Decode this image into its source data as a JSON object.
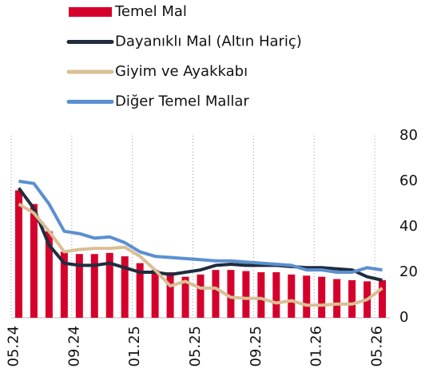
{
  "chart_data": {
    "type": "bar",
    "categories": [
      "05.24",
      null,
      null,
      null,
      "09.24",
      null,
      null,
      null,
      "01.25",
      null,
      null,
      null,
      "05.25",
      null,
      null,
      null,
      "09.25",
      null,
      null,
      null,
      "01.26",
      null,
      null,
      null,
      "05.26"
    ],
    "series": [
      {
        "name": "Temel Mal",
        "type": "bar",
        "color": "#d5002b",
        "values": [
          56,
          50,
          38,
          29,
          28,
          28,
          28.5,
          27,
          24,
          21,
          20,
          18,
          19,
          21,
          21,
          20.5,
          20,
          20,
          19,
          18.5,
          18,
          17,
          16.5,
          16,
          16.5
        ]
      },
      {
        "name": "Dayanıklı Mal (Altın Hariç)",
        "type": "line",
        "color": "#1f2d3d",
        "values": [
          57,
          48,
          32,
          24,
          23,
          23,
          24,
          22,
          20,
          20,
          19,
          20,
          21,
          23,
          23.5,
          23,
          23,
          23,
          22.5,
          22,
          22,
          21.5,
          21,
          18,
          16.5
        ]
      },
      {
        "name": "Giyim ve Ayakkabı",
        "type": "line",
        "color": "#d9bf95",
        "values": [
          50,
          46,
          38,
          29,
          30,
          30.5,
          30.5,
          31,
          27,
          21,
          14,
          16,
          13,
          13,
          9,
          8.5,
          8.5,
          6.5,
          7.5,
          5.5,
          5.5,
          6,
          6,
          8,
          13
        ]
      },
      {
        "name": "Diğer Temel Mallar",
        "type": "line",
        "color": "#5b8fd1",
        "values": [
          60,
          59,
          50,
          38,
          37,
          35,
          35.5,
          33,
          29,
          27,
          26.5,
          26,
          25.5,
          25,
          25,
          24.5,
          24,
          23.5,
          23,
          21,
          21,
          20,
          20,
          22,
          21
        ]
      }
    ],
    "ylim": [
      0,
      80
    ],
    "yticks": [
      0,
      20,
      40,
      60,
      80
    ],
    "grid": true,
    "legend": "top-left"
  }
}
